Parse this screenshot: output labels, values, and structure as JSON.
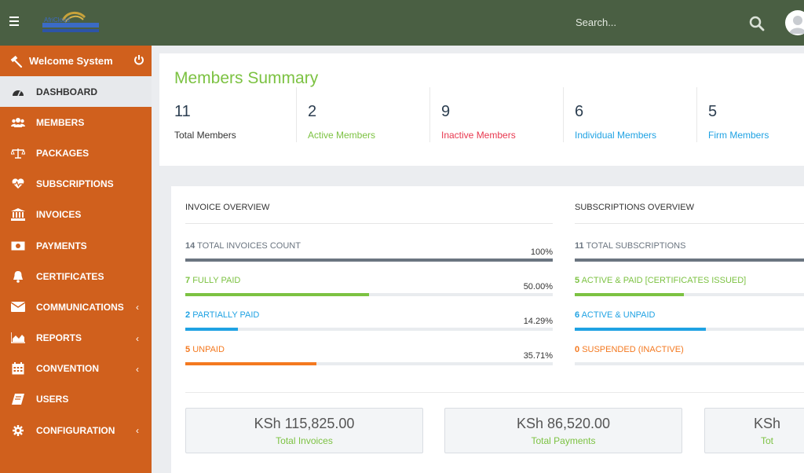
{
  "header": {
    "search_placeholder": "Search...",
    "menu_icon": "hamburger-icon",
    "logo": "logo"
  },
  "sidebar": {
    "welcome": "Welcome System",
    "items": [
      {
        "label": "DASHBOARD",
        "icon": "dashboard-icon",
        "active": true
      },
      {
        "label": "MEMBERS",
        "icon": "users-icon"
      },
      {
        "label": "PACKAGES",
        "icon": "balance-scale-icon"
      },
      {
        "label": "SUBSCRIPTIONS",
        "icon": "heartbeat-icon"
      },
      {
        "label": "INVOICES",
        "icon": "bank-icon"
      },
      {
        "label": "PAYMENTS",
        "icon": "money-icon"
      },
      {
        "label": "CERTIFICATES",
        "icon": "bell-icon"
      },
      {
        "label": "COMMUNICATIONS",
        "icon": "envelope-icon",
        "chevron": "‹"
      },
      {
        "label": "REPORTS",
        "icon": "area-chart-icon",
        "chevron": "‹"
      },
      {
        "label": "CONVENTION",
        "icon": "calendar-icon",
        "chevron": "‹"
      },
      {
        "label": "USERS",
        "icon": "book-icon"
      },
      {
        "label": "CONFIGURATION",
        "icon": "gear-icon",
        "chevron": "‹"
      }
    ]
  },
  "summary": {
    "title": "Members Summary",
    "stats": [
      {
        "value": "11",
        "label": "Total Members",
        "color": "#333333"
      },
      {
        "value": "2",
        "label": "Active Members",
        "color": "#7cc242"
      },
      {
        "value": "9",
        "label": "Inactive Members",
        "color": "#e8384f"
      },
      {
        "value": "6",
        "label": "Individual Members",
        "color": "#1fa2e3"
      },
      {
        "value": "5",
        "label": "Firm Members",
        "color": "#1fa2e3"
      }
    ]
  },
  "invoice_overview": {
    "title": "INVOICE OVERVIEW",
    "rows": [
      {
        "count": "14",
        "label": "TOTAL INVOICES COUNT",
        "pct": "100%",
        "fraction": 1.0,
        "color": "#6b7580",
        "label_color": "#6b7580"
      },
      {
        "count": "7",
        "label": "FULLY PAID",
        "pct": "50.00%",
        "fraction": 0.5,
        "color": "#7cc242",
        "label_color": "#7cc242"
      },
      {
        "count": "2",
        "label": "PARTIALLY PAID",
        "pct": "14.29%",
        "fraction": 0.1429,
        "color": "#1fa2e3",
        "label_color": "#1fa2e3"
      },
      {
        "count": "5",
        "label": "UNPAID",
        "pct": "35.71%",
        "fraction": 0.3571,
        "color": "#f47920",
        "label_color": "#f47920"
      }
    ]
  },
  "subscriptions_overview": {
    "title": "SUBSCRIPTIONS OVERVIEW",
    "rows": [
      {
        "count": "11",
        "label": "TOTAL SUBSCRIPTIONS",
        "fraction": 1.0,
        "color": "#6b7580",
        "label_color": "#6b7580"
      },
      {
        "count": "5",
        "label": "ACTIVE & PAID [CERTIFICATES ISSUED]",
        "fraction": 0.4545,
        "color": "#7cc242",
        "label_color": "#7cc242"
      },
      {
        "count": "6",
        "label": "ACTIVE & UNPAID",
        "fraction": 0.5455,
        "color": "#1fa2e3",
        "label_color": "#1fa2e3"
      },
      {
        "count": "0",
        "label": "SUSPENDED (INACTIVE)",
        "fraction": 0.0,
        "color": "#f47920",
        "label_color": "#f47920"
      }
    ]
  },
  "totals": [
    {
      "amount": "KSh 115,825.00",
      "caption": "Total Invoices"
    },
    {
      "amount": "KSh 86,520.00",
      "caption": "Total Payments"
    },
    {
      "amount": "KSh",
      "caption": "Tot"
    }
  ],
  "colors": {
    "topbar": "#4a5f43",
    "sidebar": "#d0601d",
    "accent_green": "#7cc242"
  }
}
